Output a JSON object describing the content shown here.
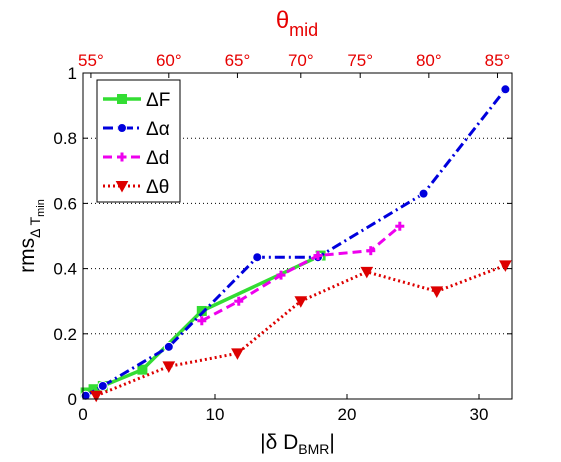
{
  "chart_data": {
    "type": "line",
    "xlabel": {
      "main": "|δ D",
      "sub": "BMR",
      "tail": "|"
    },
    "ylabel": {
      "main": "rms",
      "sub1": "Δ T",
      "sub2": "min"
    },
    "top_axis_label": {
      "main": "θ",
      "sub": "mid"
    },
    "xlim": [
      0,
      32.5
    ],
    "ylim": [
      0,
      1
    ],
    "x_ticks": [
      "0",
      "10",
      "20",
      "30"
    ],
    "y_ticks": [
      "0",
      "0.2",
      "0.4",
      "0.6",
      "0.8",
      "1"
    ],
    "top_ticks": [
      {
        "label": "55°",
        "x": 0.6
      },
      {
        "label": "60°",
        "x": 6.5
      },
      {
        "label": "65°",
        "x": 11.7
      },
      {
        "label": "70°",
        "x": 16.5
      },
      {
        "label": "75°",
        "x": 21.0
      },
      {
        "label": "80°",
        "x": 26.2
      },
      {
        "label": "85°",
        "x": 31.4
      }
    ],
    "grid": "horizontal dotted",
    "legend_position": "top-left",
    "series": [
      {
        "name": "ΔF",
        "color": "#33dd33",
        "dash": "solid",
        "marker": "square",
        "x": [
          0.2,
          0.8,
          1.5,
          4.5,
          9.0,
          18.0
        ],
        "y": [
          0.02,
          0.03,
          0.04,
          0.09,
          0.27,
          0.44
        ]
      },
      {
        "name": "Δα",
        "color": "#0000dd",
        "dash": "dashdot",
        "marker": "circle",
        "x": [
          0.2,
          1.5,
          6.5,
          13.2,
          17.8,
          25.8,
          32.0
        ],
        "y": [
          0.01,
          0.04,
          0.16,
          0.435,
          0.435,
          0.63,
          0.95
        ]
      },
      {
        "name": "Δd",
        "color": "#ee00ee",
        "dash": "dashed",
        "marker": "plus",
        "x": [
          9.0,
          11.8,
          15.0,
          17.8,
          21.8,
          24.0
        ],
        "y": [
          0.24,
          0.3,
          0.38,
          0.44,
          0.455,
          0.53
        ]
      },
      {
        "name": "Δθ",
        "color": "#dd0000",
        "dash": "dotted",
        "marker": "triangle-down",
        "x": [
          1.0,
          6.5,
          11.7,
          16.5,
          21.5,
          26.8,
          32.0
        ],
        "y": [
          0.01,
          0.1,
          0.14,
          0.3,
          0.39,
          0.33,
          0.41
        ]
      }
    ]
  }
}
